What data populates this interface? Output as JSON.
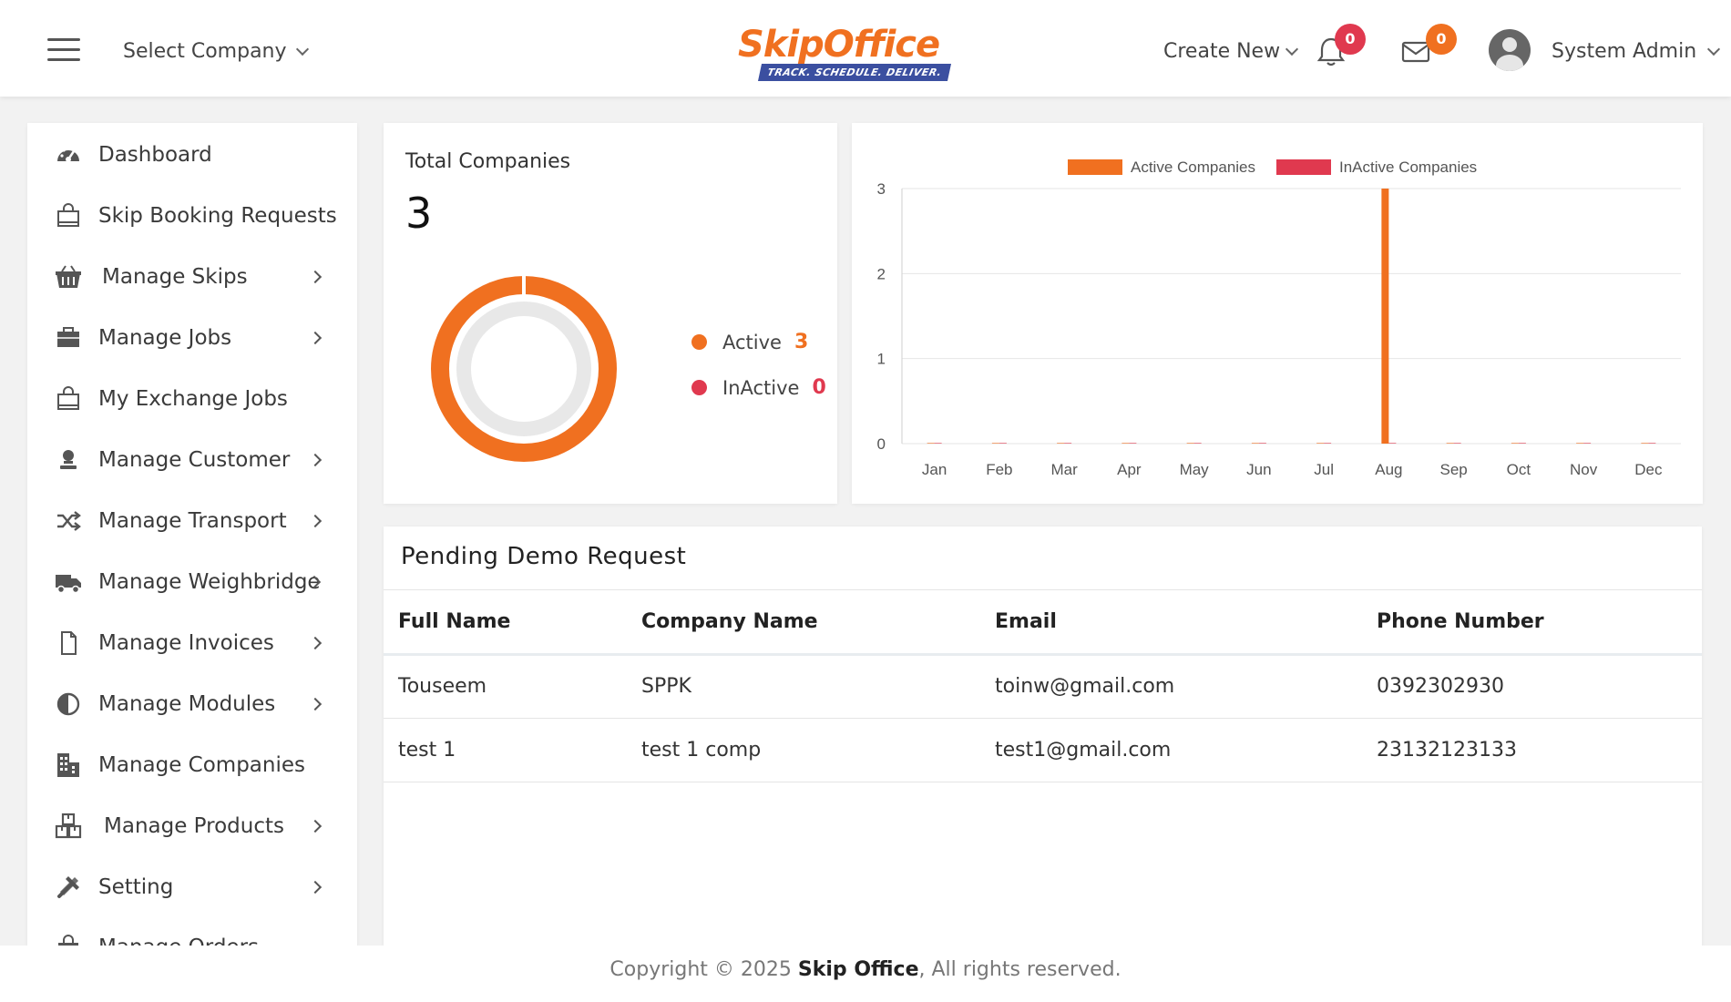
{
  "header": {
    "select_company": "Select Company",
    "logo_text_a": "Skip",
    "logo_text_b": "Office",
    "logo_tagline": "TRACK. SCHEDULE. DELIVER.",
    "create_new": "Create New",
    "notifications_count": "0",
    "messages_count": "0",
    "user_name": "System Admin"
  },
  "sidebar": {
    "items": [
      {
        "label": "Dashboard",
        "icon": "gauge-icon",
        "has_arrow": false
      },
      {
        "label": "Skip Booking Requests",
        "icon": "shopping-bag-icon",
        "has_arrow": false
      },
      {
        "label": "Manage Skips",
        "icon": "basket-icon",
        "has_arrow": true
      },
      {
        "label": "Manage Jobs",
        "icon": "briefcase-icon",
        "has_arrow": true
      },
      {
        "label": "My Exchange Jobs",
        "icon": "shopping-bag-icon",
        "has_arrow": false
      },
      {
        "label": "Manage Customer",
        "icon": "user-icon",
        "has_arrow": true
      },
      {
        "label": "Manage Transport",
        "icon": "shuffle-icon",
        "has_arrow": true
      },
      {
        "label": "Manage Weighbridge",
        "icon": "truck-icon",
        "has_arrow": true
      },
      {
        "label": "Manage Invoices",
        "icon": "document-icon",
        "has_arrow": true
      },
      {
        "label": "Manage Modules",
        "icon": "half-circle-icon",
        "has_arrow": true
      },
      {
        "label": "Manage Companies",
        "icon": "building-icon",
        "has_arrow": false
      },
      {
        "label": "Manage Products",
        "icon": "boxes-icon",
        "has_arrow": true
      },
      {
        "label": "Setting",
        "icon": "tools-icon",
        "has_arrow": true
      },
      {
        "label": "Manage Orders",
        "icon": "bag-icon",
        "has_arrow": false
      }
    ]
  },
  "total_companies": {
    "title": "Total Companies",
    "total": "3",
    "legend": [
      {
        "label": "Active",
        "value": "3",
        "color": "#f07020"
      },
      {
        "label": "InActive",
        "value": "0",
        "color": "#e0394f"
      }
    ]
  },
  "chart_data": {
    "type": "bar",
    "categories": [
      "Jan",
      "Feb",
      "Mar",
      "Apr",
      "May",
      "Jun",
      "Jul",
      "Aug",
      "Sep",
      "Oct",
      "Nov",
      "Dec"
    ],
    "series": [
      {
        "name": "Active Companies",
        "color": "#f07020",
        "values": [
          0,
          0,
          0,
          0,
          0,
          0,
          0,
          3,
          0,
          0,
          0,
          0
        ]
      },
      {
        "name": "InActive Companies",
        "color": "#e0394f",
        "values": [
          0,
          0,
          0,
          0,
          0,
          0,
          0,
          0,
          0,
          0,
          0,
          0
        ]
      }
    ],
    "ylim": [
      0,
      3
    ],
    "yticks": [
      "0",
      "1",
      "2",
      "3"
    ],
    "grid": true,
    "legend_position": "top-center"
  },
  "pending": {
    "title": "Pending Demo Request",
    "columns": [
      "Full Name",
      "Company Name",
      "Email",
      "Phone Number"
    ],
    "rows": [
      [
        "Touseem",
        "SPPK",
        "toinw@gmail.com",
        "0392302930"
      ],
      [
        "test 1",
        "test 1 comp",
        "test1@gmail.com",
        "23132123133"
      ]
    ]
  },
  "footer": {
    "copyright_prefix": "Copyright © 2025",
    "brand": "Skip Office",
    "suffix": ", All rights reserved."
  }
}
